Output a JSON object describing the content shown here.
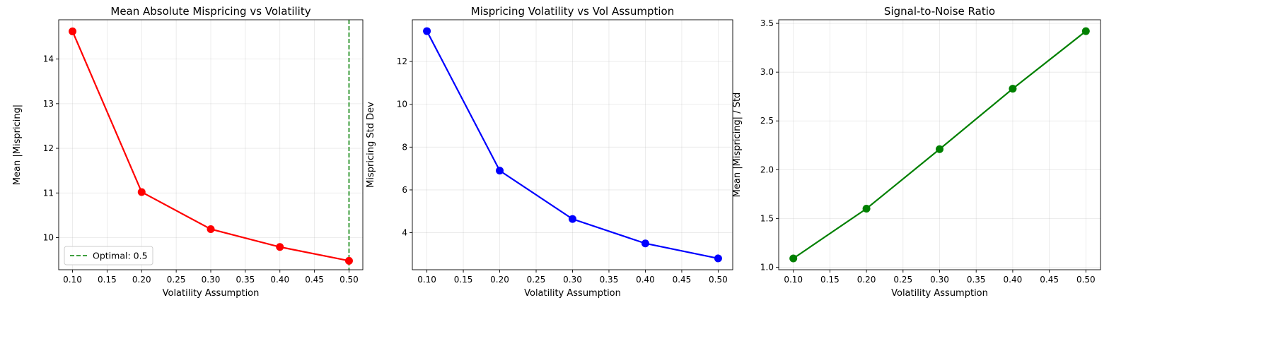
{
  "chart_data": [
    {
      "type": "line",
      "title": "Mean Absolute Mispricing vs Volatility",
      "xlabel": "Volatility Assumption",
      "ylabel": "Mean |Mispricing|",
      "x": [
        0.1,
        0.2,
        0.3,
        0.4,
        0.5
      ],
      "series": [
        {
          "values": [
            14.62,
            11.02,
            10.19,
            9.79,
            9.48
          ],
          "color": "#ff0000"
        }
      ],
      "xlim": [
        0.08,
        0.52
      ],
      "ylim": [
        9.28,
        14.88
      ],
      "xticks": [
        0.1,
        0.15,
        0.2,
        0.25,
        0.3,
        0.35,
        0.4,
        0.45,
        0.5
      ],
      "xtick_labels": [
        "0.10",
        "0.15",
        "0.20",
        "0.25",
        "0.30",
        "0.35",
        "0.40",
        "0.45",
        "0.50"
      ],
      "yticks": [
        10,
        11,
        12,
        13,
        14
      ],
      "ytick_labels": [
        "10",
        "11",
        "12",
        "13",
        "14"
      ],
      "vline": {
        "x": 0.5,
        "color": "#008000",
        "label": "Optimal: 0.5"
      },
      "legend": "lower-left",
      "grid": true
    },
    {
      "type": "line",
      "title": "Mispricing Volatility vs Vol Assumption",
      "xlabel": "Volatility Assumption",
      "ylabel": "Mispricing Std Dev",
      "x": [
        0.1,
        0.2,
        0.3,
        0.4,
        0.5
      ],
      "series": [
        {
          "values": [
            13.42,
            6.9,
            4.64,
            3.5,
            2.8
          ],
          "color": "#0000ff"
        }
      ],
      "xlim": [
        0.08,
        0.52
      ],
      "ylim": [
        2.27,
        13.95
      ],
      "xticks": [
        0.1,
        0.15,
        0.2,
        0.25,
        0.3,
        0.35,
        0.4,
        0.45,
        0.5
      ],
      "xtick_labels": [
        "0.10",
        "0.15",
        "0.20",
        "0.25",
        "0.30",
        "0.35",
        "0.40",
        "0.45",
        "0.50"
      ],
      "yticks": [
        4,
        6,
        8,
        10,
        12
      ],
      "ytick_labels": [
        "4",
        "6",
        "8",
        "10",
        "12"
      ],
      "grid": true
    },
    {
      "type": "line",
      "title": "Signal-to-Noise Ratio",
      "xlabel": "Volatility Assumption",
      "ylabel": "Mean |Mispricing| / Std",
      "x": [
        0.1,
        0.2,
        0.3,
        0.4,
        0.5
      ],
      "series": [
        {
          "values": [
            1.09,
            1.6,
            2.21,
            2.83,
            3.42
          ],
          "color": "#008000"
        }
      ],
      "xlim": [
        0.08,
        0.52
      ],
      "ylim": [
        0.974,
        3.537
      ],
      "xticks": [
        0.1,
        0.15,
        0.2,
        0.25,
        0.3,
        0.35,
        0.4,
        0.45,
        0.5
      ],
      "xtick_labels": [
        "0.10",
        "0.15",
        "0.20",
        "0.25",
        "0.30",
        "0.35",
        "0.40",
        "0.45",
        "0.50"
      ],
      "yticks": [
        1.0,
        1.5,
        2.0,
        2.5,
        3.0,
        3.5
      ],
      "ytick_labels": [
        "1.0",
        "1.5",
        "2.0",
        "2.5",
        "3.0",
        "3.5"
      ],
      "grid": true
    }
  ]
}
